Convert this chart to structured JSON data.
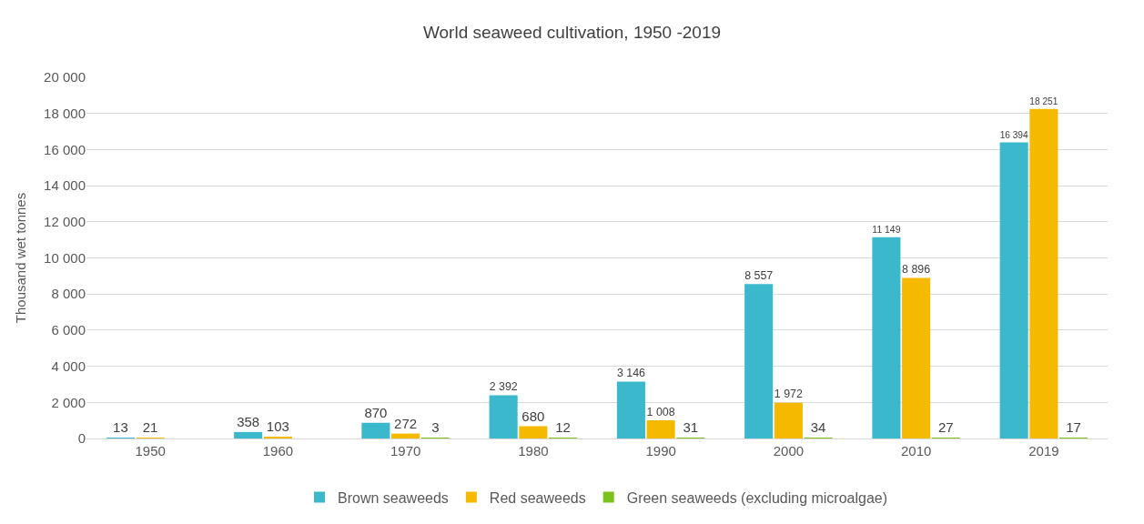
{
  "chart_data": {
    "type": "bar",
    "title": "World seaweed cultivation, 1950 -2019",
    "ylabel": "Thousand wet tonnes",
    "categories": [
      "1950",
      "1960",
      "1970",
      "1980",
      "1990",
      "2000",
      "2010",
      "2019"
    ],
    "series": [
      {
        "name": "Brown seaweeds",
        "color": "#3cb8cc",
        "values": [
          13,
          358,
          870,
          2392,
          3146,
          8557,
          11149,
          16394
        ],
        "value_labels": [
          "13",
          "358",
          "870",
          "2 392",
          "3 146",
          "8 557",
          "11 149",
          "16 394"
        ]
      },
      {
        "name": "Red seaweeds",
        "color": "#f5ba00",
        "values": [
          21,
          103,
          272,
          680,
          1008,
          1972,
          8896,
          18251
        ],
        "value_labels": [
          "21",
          "103",
          "272",
          "680",
          "1 008",
          "1 972",
          "8 896",
          "18 251"
        ]
      },
      {
        "name": "Green seaweeds (excluding microalgae)",
        "color": "#7cc21e",
        "values": [
          null,
          null,
          3,
          12,
          31,
          34,
          27,
          17
        ],
        "value_labels": [
          null,
          null,
          "3",
          "12",
          "31",
          "34",
          "27",
          "17"
        ]
      }
    ],
    "ylim": [
      0,
      20000
    ],
    "yticks": [
      0,
      {
        "value": 2000,
        "label": "2 000"
      },
      {
        "value": 4000,
        "label": "4 000"
      },
      {
        "value": 6000,
        "label": "6 000"
      },
      {
        "value": 8000,
        "label": "8 000"
      },
      {
        "value": 10000,
        "label": "10 000"
      },
      {
        "value": 12000,
        "label": "12 000"
      },
      {
        "value": 14000,
        "label": "14 000"
      },
      {
        "value": 16000,
        "label": "16 000"
      },
      {
        "value": 18000,
        "label": "18 000"
      },
      {
        "value": 20000,
        "label": "20 000"
      }
    ],
    "grid": "y",
    "legend": "bottom"
  }
}
